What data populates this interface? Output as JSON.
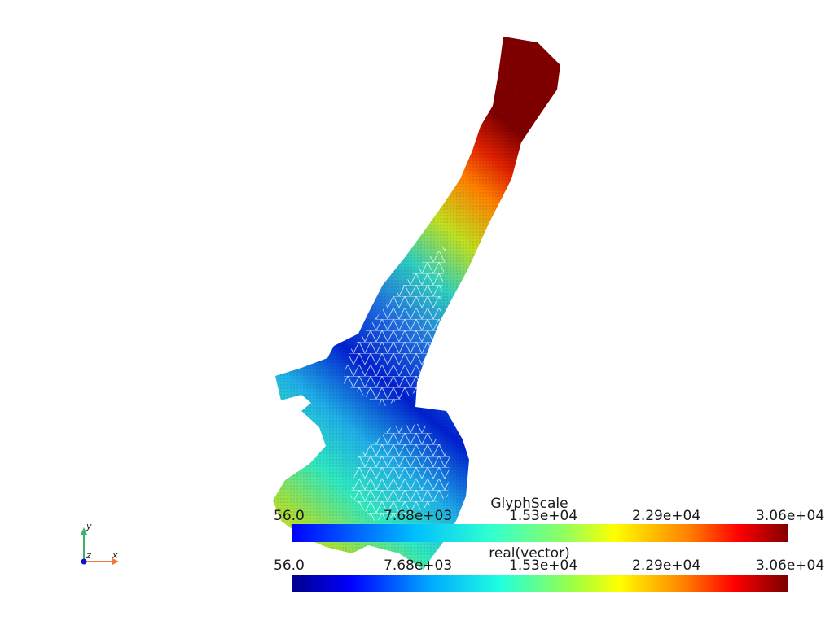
{
  "colorbars": [
    {
      "title": "GlyphScale",
      "ticks": [
        "56.0",
        "7.68e+03",
        "1.53e+04",
        "2.29e+04",
        "3.06e+04"
      ],
      "colormap": "rainbow"
    },
    {
      "title": "real(vector)",
      "ticks": [
        "56.0",
        "7.68e+03",
        "1.53e+04",
        "2.29e+04",
        "3.06e+04"
      ],
      "colormap": "jet"
    }
  ],
  "axes_widget": {
    "x_label": "x",
    "y_label": "y",
    "z_label": "z",
    "x_color": "#f07840",
    "y_color": "#40b070",
    "z_color": "#1010d0"
  },
  "mesh": {
    "colormap": "jet",
    "value_range": [
      56.0,
      30600.0
    ]
  }
}
